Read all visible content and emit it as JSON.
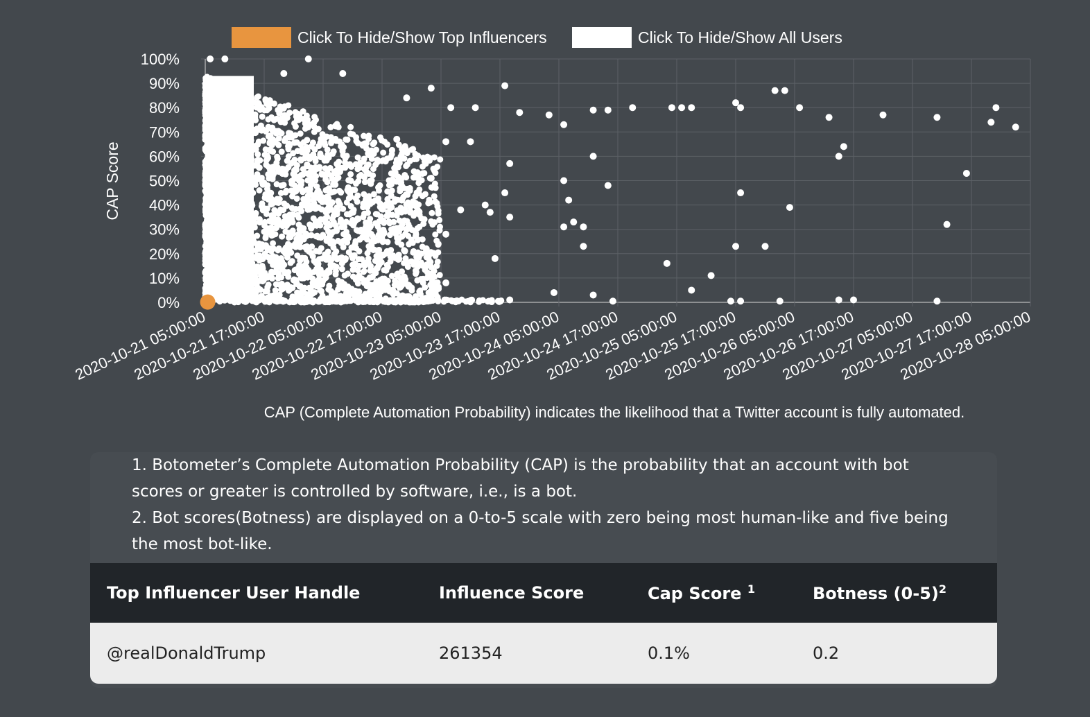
{
  "legend": {
    "top_influencers_label": "Click To Hide/Show Top Influencers",
    "all_users_label": "Click To Hide/Show All Users",
    "top_influencers_color": "#e8953f",
    "all_users_color": "#ffffff"
  },
  "chart_data": {
    "type": "scatter",
    "ylabel": "CAP Score",
    "y_ticks": [
      "0%",
      "10%",
      "20%",
      "30%",
      "40%",
      "50%",
      "60%",
      "70%",
      "80%",
      "90%",
      "100%"
    ],
    "ylim": [
      0,
      100
    ],
    "x_ticks": [
      "2020-10-21 05:00:00",
      "2020-10-21 17:00:00",
      "2020-10-22 05:00:00",
      "2020-10-22 17:00:00",
      "2020-10-23 05:00:00",
      "2020-10-23 17:00:00",
      "2020-10-24 05:00:00",
      "2020-10-24 17:00:00",
      "2020-10-25 05:00:00",
      "2020-10-25 17:00:00",
      "2020-10-26 05:00:00",
      "2020-10-26 17:00:00",
      "2020-10-27 05:00:00",
      "2020-10-27 17:00:00",
      "2020-10-28 05:00:00"
    ],
    "xlim": [
      "2020-10-21 05:00:00",
      "2020-10-28 05:00:00"
    ],
    "grid": true,
    "legend_position": "top",
    "series": [
      {
        "name": "Top Influencers",
        "color": "#e8953f",
        "points": [
          [
            "2020-10-21 05:30:00",
            0.1
          ]
        ]
      },
      {
        "name": "All Users",
        "color": "#ffffff",
        "dense_region": {
          "x_from": "2020-10-21 05:00:00",
          "x_to": "2020-10-22 02:00:00",
          "y_from": 0,
          "y_to": 93
        },
        "points": [
          [
            "2020-10-21 06:00:00",
            100
          ],
          [
            "2020-10-21 09:00:00",
            100
          ],
          [
            "2020-10-22 02:00:00",
            100
          ],
          [
            "2020-10-21 21:00:00",
            94
          ],
          [
            "2020-10-22 09:00:00",
            94
          ],
          [
            "2020-10-22 22:00:00",
            84
          ],
          [
            "2020-10-23 03:00:00",
            88
          ],
          [
            "2020-10-23 07:00:00",
            80
          ],
          [
            "2020-10-23 12:00:00",
            80
          ],
          [
            "2020-10-23 18:00:00",
            89
          ],
          [
            "2020-10-23 21:00:00",
            78
          ],
          [
            "2020-10-24 03:00:00",
            77
          ],
          [
            "2020-10-24 06:00:00",
            73
          ],
          [
            "2020-10-24 12:00:00",
            79
          ],
          [
            "2020-10-24 15:00:00",
            79
          ],
          [
            "2020-10-24 20:00:00",
            80
          ],
          [
            "2020-10-25 04:00:00",
            80
          ],
          [
            "2020-10-25 06:00:00",
            80
          ],
          [
            "2020-10-25 08:00:00",
            80
          ],
          [
            "2020-10-25 17:00:00",
            82
          ],
          [
            "2020-10-25 18:00:00",
            80
          ],
          [
            "2020-10-26 01:00:00",
            87
          ],
          [
            "2020-10-26 03:00:00",
            87
          ],
          [
            "2020-10-26 06:00:00",
            80
          ],
          [
            "2020-10-26 12:00:00",
            76
          ],
          [
            "2020-10-26 23:00:00",
            77
          ],
          [
            "2020-10-27 10:00:00",
            76
          ],
          [
            "2020-10-27 21:00:00",
            74
          ],
          [
            "2020-10-27 22:00:00",
            80
          ],
          [
            "2020-10-28 02:00:00",
            72
          ],
          [
            "2020-10-22 20:00:00",
            67
          ],
          [
            "2020-10-23 06:00:00",
            66
          ],
          [
            "2020-10-23 11:00:00",
            66
          ],
          [
            "2020-10-23 19:00:00",
            57
          ],
          [
            "2020-10-24 12:00:00",
            60
          ],
          [
            "2020-10-24 15:00:00",
            48
          ],
          [
            "2020-10-26 15:00:00",
            64
          ],
          [
            "2020-10-26 14:00:00",
            60
          ],
          [
            "2020-10-27 16:00:00",
            53
          ],
          [
            "2020-10-23 18:00:00",
            45
          ],
          [
            "2020-10-24 06:00:00",
            50
          ],
          [
            "2020-10-24 07:00:00",
            42
          ],
          [
            "2020-10-25 18:00:00",
            45
          ],
          [
            "2020-10-26 04:00:00",
            39
          ],
          [
            "2020-10-23 19:00:00",
            35
          ],
          [
            "2020-10-24 06:00:00",
            31
          ],
          [
            "2020-10-24 08:00:00",
            33
          ],
          [
            "2020-10-24 10:00:00",
            31
          ],
          [
            "2020-10-27 12:00:00",
            32
          ],
          [
            "2020-10-23 16:00:00",
            18
          ],
          [
            "2020-10-24 10:00:00",
            23
          ],
          [
            "2020-10-25 03:00:00",
            16
          ],
          [
            "2020-10-25 17:00:00",
            23
          ],
          [
            "2020-10-25 12:00:00",
            11
          ],
          [
            "2020-10-25 23:00:00",
            23
          ],
          [
            "2020-10-25 08:00:00",
            5
          ],
          [
            "2020-10-23 06:00:00",
            8
          ],
          [
            "2020-10-23 19:00:00",
            1
          ],
          [
            "2020-10-24 04:00:00",
            4
          ],
          [
            "2020-10-24 12:00:00",
            3
          ],
          [
            "2020-10-24 16:00:00",
            0.5
          ],
          [
            "2020-10-25 16:00:00",
            0.5
          ],
          [
            "2020-10-25 18:00:00",
            0.5
          ],
          [
            "2020-10-26 02:00:00",
            0.5
          ],
          [
            "2020-10-26 14:00:00",
            1
          ],
          [
            "2020-10-26 17:00:00",
            1
          ],
          [
            "2020-10-27 10:00:00",
            0.5
          ],
          [
            "2020-10-22 12:00:00",
            10
          ],
          [
            "2020-10-22 16:00:00",
            14
          ],
          [
            "2020-10-23 02:00:00",
            22
          ],
          [
            "2020-10-23 06:00:00",
            28
          ],
          [
            "2020-10-23 09:00:00",
            38
          ],
          [
            "2020-10-22 21:00:00",
            42
          ],
          [
            "2020-10-22 22:00:00",
            30
          ],
          [
            "2020-10-23 03:00:00",
            51
          ],
          [
            "2020-10-23 14:00:00",
            40
          ],
          [
            "2020-10-23 15:00:00",
            37
          ]
        ]
      }
    ],
    "caption": "CAP (Complete Automation Probability) indicates the likelihood that a Twitter account is fully automated."
  },
  "footnotes": {
    "note1": "1. Botometer’s Complete Automation Probability (CAP) is the probability that an account with bot scores or greater is controlled by software, i.e., is a bot.",
    "note2": "2. Bot scores(Botness) are displayed on a 0-to-5 scale with zero being most human-like and five being the most bot-like."
  },
  "table": {
    "headers": {
      "handle": "Top Influencer User Handle",
      "influence": "Influence Score",
      "cap": "Cap Score",
      "cap_sup": "1",
      "botness": "Botness (0-5)",
      "botness_sup": "2"
    },
    "rows": [
      {
        "handle": "@realDonaldTrump",
        "influence": "261354",
        "cap": "0.1%",
        "botness": "0.2"
      }
    ]
  }
}
